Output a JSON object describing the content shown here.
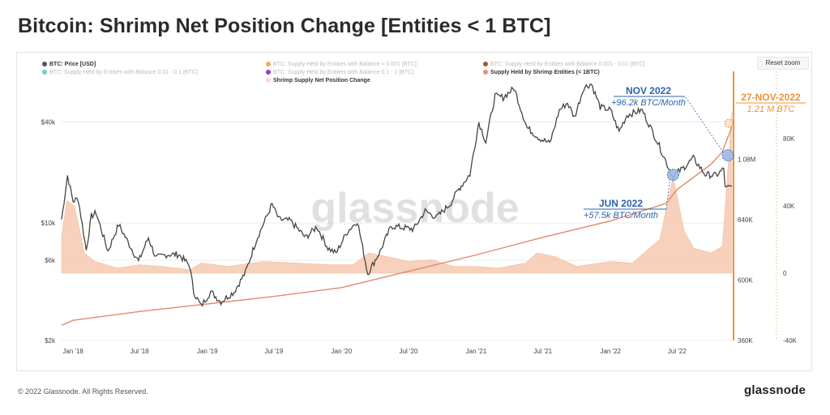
{
  "title": "Bitcoin: Shrimp Net Position Change [Entities < 1 BTC]",
  "reset_zoom_label": "Reset zoom",
  "footer": {
    "copyright": "© 2022 Glassnode. All Rights Reserved.",
    "logo": "glassnode"
  },
  "watermark": "glassnode",
  "colors": {
    "price": "#444444",
    "supply_line": "#e08a6c",
    "net_change_fill": "#f7cdb4",
    "highlight": "#e8943a",
    "annotation_blue": "#2a64b0",
    "marker_blue": "#9db8e8"
  },
  "legend": [
    {
      "label": "BTC: Price [USD]",
      "color": "#555555",
      "active": true
    },
    {
      "label": "BTC: Supply Held by Entities with Balance < 0.001 [BTC]",
      "color": "#f2a860",
      "active": false
    },
    {
      "label": "BTC: Supply Held by Entities with Balance 0.001 - 0.01 [BTC]",
      "color": "#a0592a",
      "active": false
    },
    {
      "label": "BTC: Supply Held by Entities with Balance 0.01 - 0.1 [BTC]",
      "color": "#6fd0c8",
      "active": false
    },
    {
      "label": "BTC: Supply Held by Entities with Balance 0.1 - 1 [BTC]",
      "color": "#9a3cc0",
      "active": false
    },
    {
      "label": "Supply Held by Shrimp Entities (< 1BTC)",
      "color": "#e8907a",
      "active": true
    },
    {
      "label": "Shrimp Supply Net Position Change",
      "color": "#f9d6d6",
      "active": true
    }
  ],
  "annotations": {
    "nov": {
      "title": "NOV 2022",
      "value": "+96.2k BTC/Month"
    },
    "jun": {
      "title": "JUN 2022",
      "value": "+57.5k BTC/Month"
    },
    "latest": {
      "date": "27-NOV-2022",
      "value": "1.21 M BTC"
    }
  },
  "chart_data": {
    "type": "line",
    "x_ticks": [
      "Jan '18",
      "Jul '18",
      "Jan '19",
      "Jul '19",
      "Jan '20",
      "Jul '20",
      "Jan '21",
      "Jul '21",
      "Jan '22",
      "Jul '22"
    ],
    "x_tick_dates": [
      "2018-01-01",
      "2018-07-01",
      "2019-01-01",
      "2019-07-01",
      "2020-01-01",
      "2020-07-01",
      "2021-01-01",
      "2021-07-01",
      "2022-01-01",
      "2022-07-01"
    ],
    "x_range": [
      "2017-12-01",
      "2022-11-27"
    ],
    "y_left": {
      "scale": "log",
      "ticks": [
        2000,
        6000,
        10000,
        40000
      ],
      "tick_labels": [
        "$2k",
        "$6k",
        "$10k",
        "$40k"
      ],
      "range": [
        2000,
        80000
      ]
    },
    "y_mid": {
      "tick_labels": [
        "360K",
        "600K",
        "840K",
        "1.08M"
      ],
      "ticks": [
        360000,
        600000,
        840000,
        1080000
      ],
      "range": [
        360000,
        1430000
      ]
    },
    "y_right": {
      "tick_labels": [
        "-40K",
        "0",
        "40K",
        "80K"
      ],
      "ticks": [
        -40000,
        0,
        40000,
        80000
      ],
      "range": [
        -40000,
        120000
      ]
    },
    "grid": true,
    "legend_position": "top-left",
    "series": [
      {
        "name": "BTC: Price [USD]",
        "axis": "left",
        "points": [
          [
            "2017-12-01",
            10500
          ],
          [
            "2017-12-17",
            19200
          ],
          [
            "2018-01-01",
            13500
          ],
          [
            "2018-01-15",
            14000
          ],
          [
            "2018-02-06",
            6900
          ],
          [
            "2018-02-20",
            11000
          ],
          [
            "2018-03-05",
            11500
          ],
          [
            "2018-04-06",
            6800
          ],
          [
            "2018-05-05",
            9800
          ],
          [
            "2018-06-28",
            5900
          ],
          [
            "2018-07-25",
            8200
          ],
          [
            "2018-08-14",
            6200
          ],
          [
            "2018-09-15",
            6500
          ],
          [
            "2018-10-15",
            6500
          ],
          [
            "2018-11-14",
            5600
          ],
          [
            "2018-11-25",
            3900
          ],
          [
            "2018-12-15",
            3200
          ],
          [
            "2019-01-10",
            3900
          ],
          [
            "2019-02-07",
            3400
          ],
          [
            "2019-03-15",
            3900
          ],
          [
            "2019-04-15",
            5100
          ],
          [
            "2019-05-15",
            8000
          ],
          [
            "2019-06-26",
            12900
          ],
          [
            "2019-07-15",
            10500
          ],
          [
            "2019-08-15",
            10300
          ],
          [
            "2019-09-25",
            8200
          ],
          [
            "2019-10-26",
            9500
          ],
          [
            "2019-11-25",
            7100
          ],
          [
            "2019-12-17",
            6600
          ],
          [
            "2020-01-15",
            8800
          ],
          [
            "2020-02-13",
            10300
          ],
          [
            "2020-03-12",
            5000
          ],
          [
            "2020-04-15",
            6800
          ],
          [
            "2020-05-15",
            9600
          ],
          [
            "2020-06-15",
            9400
          ],
          [
            "2020-07-15",
            9200
          ],
          [
            "2020-08-15",
            11800
          ],
          [
            "2020-09-15",
            10800
          ],
          [
            "2020-10-21",
            12900
          ],
          [
            "2020-11-15",
            16000
          ],
          [
            "2020-12-15",
            19500
          ],
          [
            "2021-01-08",
            40000
          ],
          [
            "2021-01-27",
            30500
          ],
          [
            "2021-02-21",
            57000
          ],
          [
            "2021-03-15",
            56000
          ],
          [
            "2021-04-14",
            63500
          ],
          [
            "2021-05-19",
            37000
          ],
          [
            "2021-06-22",
            32000
          ],
          [
            "2021-07-20",
            29800
          ],
          [
            "2021-08-15",
            47000
          ],
          [
            "2021-09-06",
            52000
          ],
          [
            "2021-09-25",
            42500
          ],
          [
            "2021-10-20",
            64000
          ],
          [
            "2021-11-10",
            67500
          ],
          [
            "2021-12-04",
            49000
          ],
          [
            "2022-01-01",
            47000
          ],
          [
            "2022-01-24",
            35000
          ],
          [
            "2022-02-15",
            44000
          ],
          [
            "2022-03-28",
            47000
          ],
          [
            "2022-05-10",
            30000
          ],
          [
            "2022-06-18",
            19000
          ],
          [
            "2022-07-15",
            21000
          ],
          [
            "2022-08-14",
            24300
          ],
          [
            "2022-09-15",
            19500
          ],
          [
            "2022-10-15",
            19200
          ],
          [
            "2022-11-05",
            21000
          ],
          [
            "2022-11-09",
            16000
          ],
          [
            "2022-11-27",
            16500
          ]
        ]
      },
      {
        "name": "Supply Held by Shrimp Entities (< 1BTC)",
        "axis": "mid",
        "points": [
          [
            "2017-12-01",
            420000
          ],
          [
            "2018-01-01",
            440000
          ],
          [
            "2018-07-01",
            475000
          ],
          [
            "2019-01-01",
            505000
          ],
          [
            "2019-07-01",
            535000
          ],
          [
            "2020-01-01",
            570000
          ],
          [
            "2020-07-01",
            635000
          ],
          [
            "2021-01-01",
            700000
          ],
          [
            "2021-07-01",
            770000
          ],
          [
            "2022-01-01",
            835000
          ],
          [
            "2022-06-01",
            905000
          ],
          [
            "2022-07-01",
            960000
          ],
          [
            "2022-10-01",
            1060000
          ],
          [
            "2022-11-01",
            1110000
          ],
          [
            "2022-11-27",
            1210000
          ]
        ]
      },
      {
        "name": "Shrimp Supply Net Position Change",
        "axis": "right",
        "points": [
          [
            "2017-12-01",
            22000
          ],
          [
            "2017-12-15",
            43000
          ],
          [
            "2018-01-05",
            40000
          ],
          [
            "2018-02-01",
            12000
          ],
          [
            "2018-03-01",
            7000
          ],
          [
            "2018-05-01",
            3000
          ],
          [
            "2018-07-01",
            5000
          ],
          [
            "2018-09-01",
            4000
          ],
          [
            "2018-11-15",
            2000
          ],
          [
            "2018-12-15",
            6000
          ],
          [
            "2019-03-01",
            4000
          ],
          [
            "2019-06-01",
            7000
          ],
          [
            "2019-09-01",
            6000
          ],
          [
            "2019-12-01",
            5000
          ],
          [
            "2020-02-01",
            5000
          ],
          [
            "2020-03-15",
            12000
          ],
          [
            "2020-05-01",
            10000
          ],
          [
            "2020-07-01",
            7000
          ],
          [
            "2020-09-01",
            8000
          ],
          [
            "2020-11-01",
            4000
          ],
          [
            "2021-01-01",
            4000
          ],
          [
            "2021-03-01",
            3000
          ],
          [
            "2021-05-15",
            6000
          ],
          [
            "2021-06-15",
            12000
          ],
          [
            "2021-08-01",
            10000
          ],
          [
            "2021-10-01",
            4000
          ],
          [
            "2022-01-01",
            7000
          ],
          [
            "2022-03-01",
            6000
          ],
          [
            "2022-05-15",
            20000
          ],
          [
            "2022-06-20",
            57500
          ],
          [
            "2022-07-20",
            25000
          ],
          [
            "2022-08-15",
            15000
          ],
          [
            "2022-10-01",
            12000
          ],
          [
            "2022-11-01",
            16000
          ],
          [
            "2022-11-27",
            96200
          ]
        ]
      }
    ]
  }
}
